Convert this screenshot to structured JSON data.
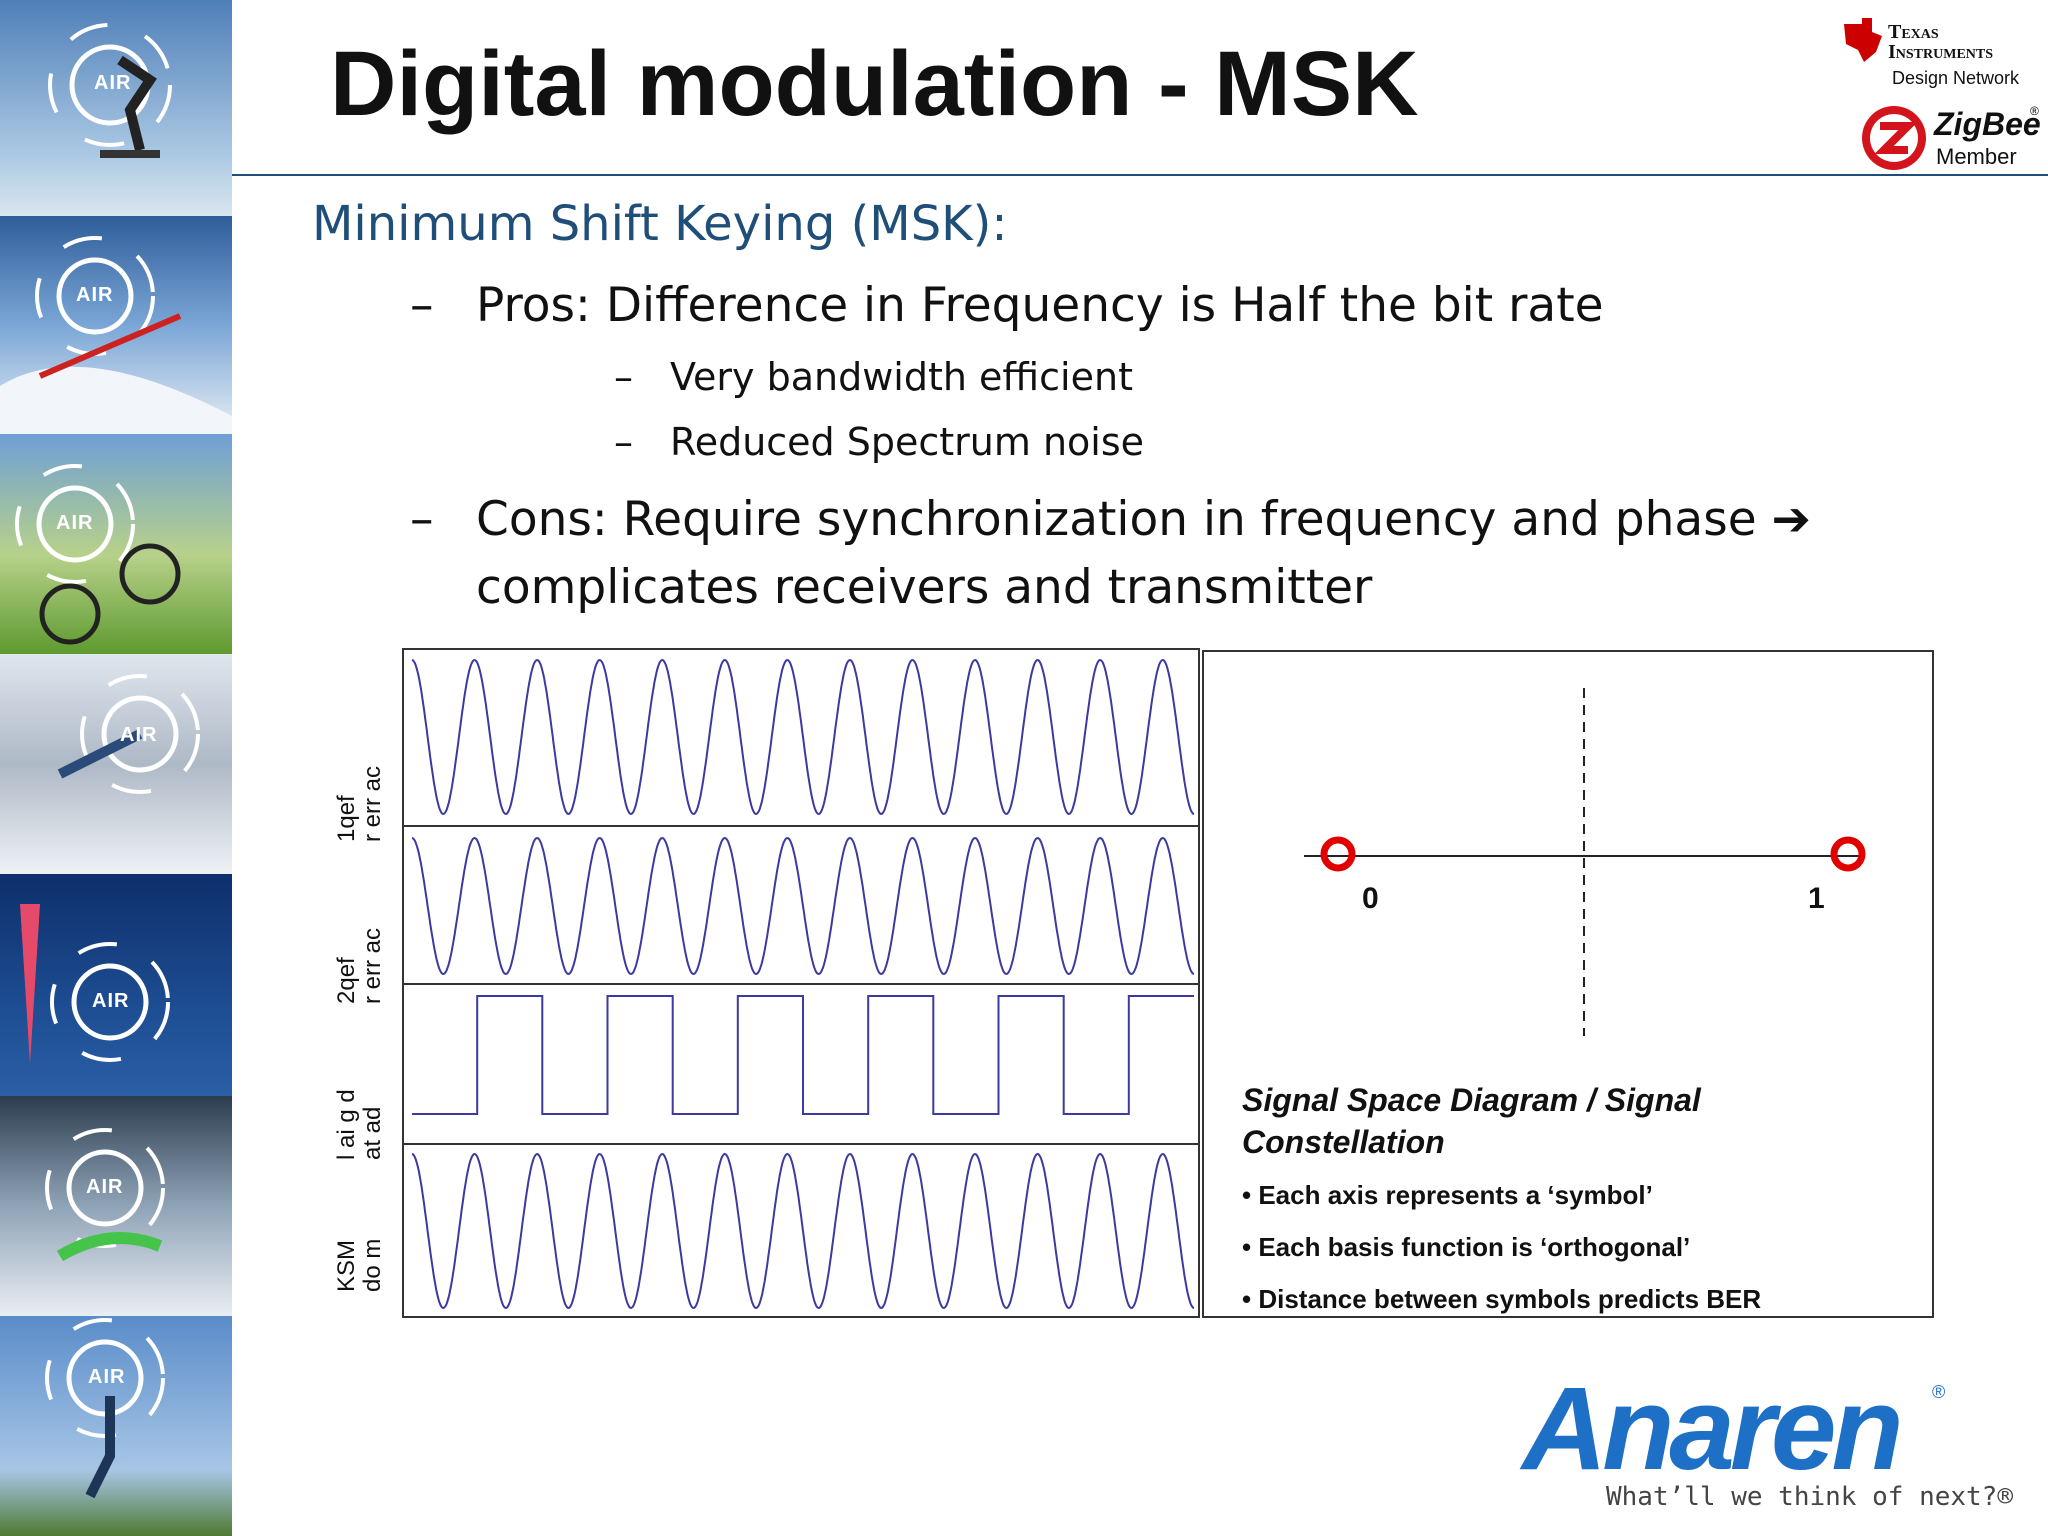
{
  "slide": {
    "title": "Digital modulation - MSK",
    "subtitle": "Minimum Shift Keying (MSK):",
    "bullets": [
      {
        "dash": "–",
        "text": "Pros: Difference in Frequency is Half the bit rate"
      },
      {
        "dash": "–",
        "text": "Very bandwidth efficient"
      },
      {
        "dash": "–",
        "text": "Reduced Spectrum noise"
      },
      {
        "dash": "–",
        "text": "Cons: Require synchronization in frequency and phase ➔"
      },
      {
        "text": "complicates receivers and transmitter"
      }
    ]
  },
  "sidebar": {
    "panel_label": "AIR"
  },
  "logos": {
    "ti_line1": "Texas",
    "ti_line2": "Instruments",
    "ti_line3": "Design Network",
    "zigbee_name": "ZigBee",
    "zigbee_reg": "®",
    "zigbee_sub": "Member",
    "anaren_name": "Anaren",
    "anaren_reg": "®",
    "anaren_tagline": "What’ll we think of next?®"
  },
  "waveform_labels": {
    "carrier1": [
      "1qef",
      "r err ac"
    ],
    "carrier2": [
      "2qef",
      "r err ac"
    ],
    "digital": [
      "l ai g d",
      "at ad"
    ],
    "msk": [
      "KSM",
      "do m"
    ]
  },
  "constellation": {
    "symbol_0": "0",
    "symbol_1": "1",
    "caption": "Signal Space Diagram / Signal Constellation",
    "notes": [
      "Each axis represents a ‘symbol’",
      "Each basis function is ‘orthogonal’",
      "Distance between symbols predicts BER"
    ]
  },
  "chart_data": {
    "type": "line",
    "title": "",
    "series": [
      {
        "name": "carrier1",
        "cycles": 12.5,
        "kind": "sine"
      },
      {
        "name": "carrier2",
        "cycles": 12.5,
        "kind": "sine"
      },
      {
        "name": "digital data",
        "bits": [
          0,
          1,
          0,
          1,
          0,
          1,
          0,
          1,
          0,
          1,
          0,
          1
        ],
        "kind": "square"
      },
      {
        "name": "MSK mod",
        "cycles": 12.5,
        "kind": "sine"
      }
    ],
    "xlabel": "",
    "ylabel": ""
  },
  "colors": {
    "title_blue": "#1f4e79",
    "wave": "#3a3aa0",
    "symbol_red": "#e00000",
    "anaren_blue": "#1e6fc6"
  }
}
